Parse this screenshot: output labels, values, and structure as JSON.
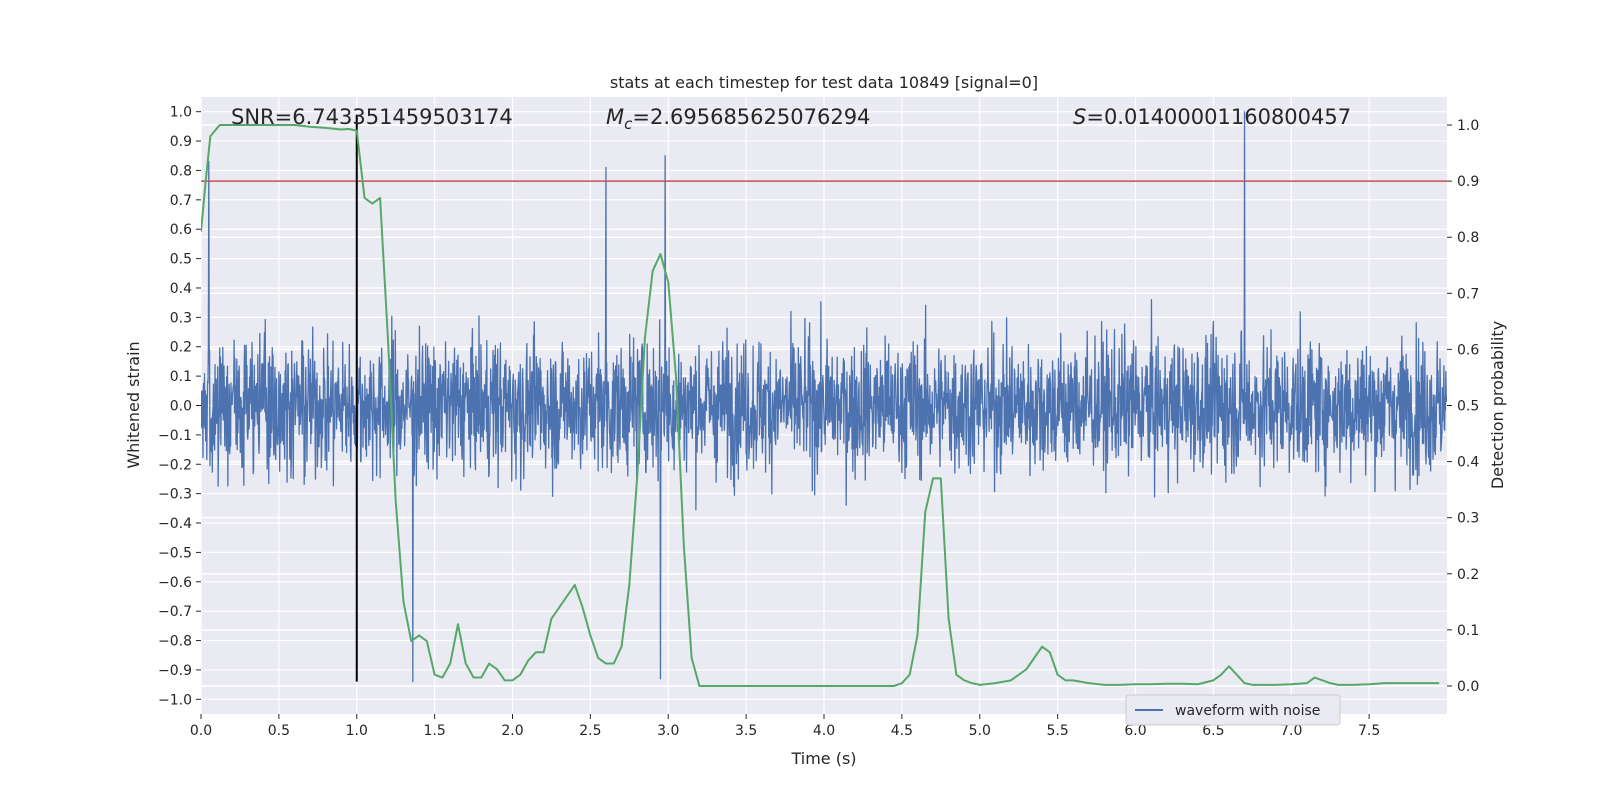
{
  "chart_data": {
    "type": "line",
    "title": "stats at each timestep for test data 10849 [signal=0]",
    "xlabel": "Time (s)",
    "ylabel": "Whitened strain",
    "y2label": "Detection probability",
    "xlim": [
      0.0,
      8.0
    ],
    "ylim": [
      -1.05,
      1.05
    ],
    "y2lim": [
      -0.05,
      1.05
    ],
    "x_ticks": [
      "0.0",
      "0.5",
      "1.0",
      "1.5",
      "2.0",
      "2.5",
      "3.0",
      "3.5",
      "4.0",
      "4.5",
      "5.0",
      "5.5",
      "6.0",
      "6.5",
      "7.0",
      "7.5"
    ],
    "y_ticks": [
      "−1.0",
      "−0.9",
      "−0.8",
      "−0.7",
      "−0.6",
      "−0.5",
      "−0.4",
      "−0.3",
      "−0.2",
      "−0.1",
      "0.0",
      "0.1",
      "0.2",
      "0.3",
      "0.4",
      "0.5",
      "0.6",
      "0.7",
      "0.8",
      "0.9",
      "1.0"
    ],
    "y2_ticks": [
      "0.0",
      "0.1",
      "0.2",
      "0.3",
      "0.4",
      "0.5",
      "0.6",
      "0.7",
      "0.8",
      "0.9",
      "1.0"
    ],
    "grid": true,
    "legend_position": "lower-right",
    "annotations": {
      "snr": "SNR=6.743351459503174",
      "mc_symbol": "M",
      "mc_sub": "c",
      "mc_value": "=2.695685625076294",
      "s_symbol": "S",
      "s_value": "=0.01400001160800457"
    },
    "series": [
      {
        "name": "waveform with noise",
        "axis": "left",
        "color": "#4c72b0",
        "notable_peaks": [
          {
            "x": 0.05,
            "y": 0.83
          },
          {
            "x": 2.6,
            "y": 0.81
          },
          {
            "x": 2.98,
            "y": 0.85
          },
          {
            "x": 6.7,
            "y": 1.0
          },
          {
            "x": 1.36,
            "y": -0.94
          },
          {
            "x": 2.95,
            "y": -0.93
          }
        ]
      },
      {
        "axis": "right",
        "color": "#55a868",
        "x": [
          0.0,
          0.03,
          0.06,
          0.12,
          0.2,
          0.3,
          0.4,
          0.5,
          0.6,
          0.7,
          0.8,
          0.9,
          0.95,
          1.0,
          1.05,
          1.1,
          1.15,
          1.2,
          1.25,
          1.3,
          1.35,
          1.4,
          1.45,
          1.5,
          1.55,
          1.6,
          1.65,
          1.7,
          1.75,
          1.8,
          1.85,
          1.9,
          1.95,
          2.0,
          2.05,
          2.1,
          2.15,
          2.2,
          2.25,
          2.3,
          2.35,
          2.4,
          2.45,
          2.5,
          2.55,
          2.6,
          2.65,
          2.7,
          2.75,
          2.8,
          2.85,
          2.9,
          2.95,
          3.0,
          3.05,
          3.1,
          3.15,
          3.2,
          3.25,
          3.3,
          3.35,
          3.4,
          3.45,
          3.5,
          3.55,
          3.6,
          3.7,
          3.8,
          3.9,
          4.0,
          4.1,
          4.2,
          4.3,
          4.4,
          4.45,
          4.5,
          4.55,
          4.6,
          4.65,
          4.7,
          4.75,
          4.8,
          4.85,
          4.9,
          4.95,
          5.0,
          5.1,
          5.2,
          5.3,
          5.4,
          5.45,
          5.5,
          5.55,
          5.6,
          5.7,
          5.8,
          5.9,
          6.0,
          6.1,
          6.2,
          6.3,
          6.4,
          6.5,
          6.55,
          6.6,
          6.65,
          6.7,
          6.75,
          6.8,
          6.9,
          7.0,
          7.1,
          7.15,
          7.2,
          7.25,
          7.3,
          7.4,
          7.5,
          7.6,
          7.7,
          7.8,
          7.9,
          7.95
        ],
        "values": [
          0.81,
          0.9,
          0.98,
          1.0,
          1.0,
          1.0,
          1.0,
          1.0,
          1.0,
          0.997,
          0.995,
          0.992,
          0.993,
          0.99,
          0.87,
          0.86,
          0.87,
          0.62,
          0.33,
          0.15,
          0.08,
          0.09,
          0.08,
          0.02,
          0.015,
          0.04,
          0.11,
          0.04,
          0.015,
          0.015,
          0.04,
          0.03,
          0.01,
          0.01,
          0.02,
          0.045,
          0.06,
          0.06,
          0.12,
          0.14,
          0.16,
          0.18,
          0.14,
          0.09,
          0.05,
          0.04,
          0.04,
          0.07,
          0.18,
          0.37,
          0.62,
          0.74,
          0.77,
          0.72,
          0.55,
          0.25,
          0.05,
          0.0,
          0.0,
          0.0,
          0.0,
          0.0,
          0.0,
          0.0,
          0.0,
          0.0,
          0.0,
          0.0,
          0.0,
          0.0,
          0.0,
          0.0,
          0.0,
          0.0,
          0.0,
          0.005,
          0.02,
          0.09,
          0.31,
          0.37,
          0.37,
          0.12,
          0.02,
          0.01,
          0.005,
          0.002,
          0.005,
          0.01,
          0.03,
          0.07,
          0.06,
          0.02,
          0.01,
          0.01,
          0.005,
          0.002,
          0.002,
          0.003,
          0.003,
          0.004,
          0.004,
          0.003,
          0.01,
          0.02,
          0.035,
          0.02,
          0.005,
          0.002,
          0.002,
          0.002,
          0.003,
          0.005,
          0.015,
          0.01,
          0.005,
          0.002,
          0.002,
          0.003,
          0.005,
          0.005,
          0.005,
          0.005,
          0.005
        ]
      }
    ],
    "horizontal_lines": [
      {
        "axis": "right",
        "y": 0.9,
        "color": "#c44e52"
      }
    ],
    "vertical_lines": [
      {
        "x": 1.0,
        "color": "#000000"
      }
    ]
  }
}
